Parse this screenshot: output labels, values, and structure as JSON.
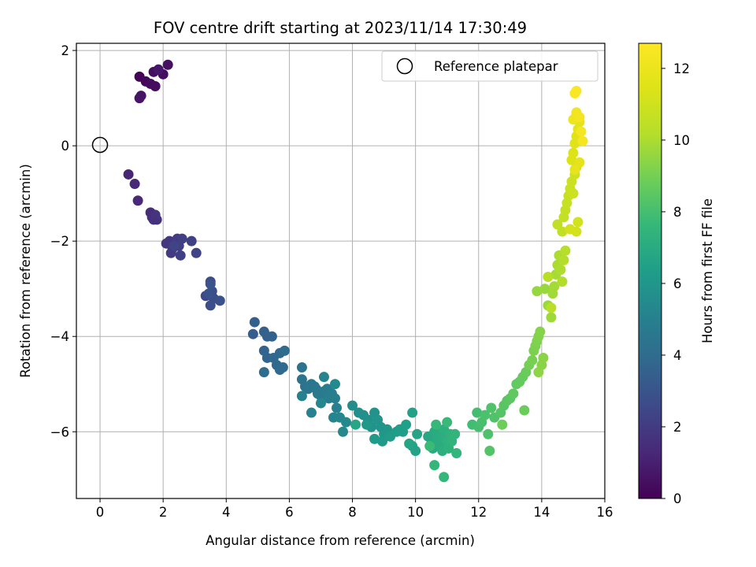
{
  "chart_data": {
    "type": "scatter",
    "title": "FOV centre drift starting at 2023/11/14 17:30:49",
    "xlabel": "Angular distance from reference (arcmin)",
    "ylabel": "Rotation from reference (arcmin)",
    "xlim": [
      -0.75,
      16.0
    ],
    "ylim": [
      -7.4,
      2.15
    ],
    "xticks": [
      0,
      2,
      4,
      6,
      8,
      10,
      12,
      14,
      16
    ],
    "yticks": [
      -6,
      -4,
      -2,
      0,
      2
    ],
    "grid": true,
    "colormap": "viridis",
    "colorbar": {
      "label": "Hours from first FF file",
      "range": [
        0,
        12.7
      ],
      "ticks": [
        0,
        2,
        4,
        6,
        8,
        10,
        12
      ]
    },
    "legend": {
      "position": "top-right",
      "entries": [
        "Reference platepar"
      ]
    },
    "reference_point": {
      "x": 0,
      "y": 0
    },
    "points": [
      [
        1.25,
        1.45,
        0.1
      ],
      [
        1.45,
        1.35,
        0.2
      ],
      [
        1.6,
        1.3,
        0.3
      ],
      [
        1.75,
        1.25,
        0.35
      ],
      [
        1.7,
        1.55,
        0.4
      ],
      [
        2.0,
        1.5,
        0.45
      ],
      [
        2.15,
        1.7,
        0.5
      ],
      [
        1.3,
        1.05,
        0.6
      ],
      [
        1.25,
        1.0,
        0.65
      ],
      [
        1.85,
        1.6,
        0.7
      ],
      [
        0.9,
        -0.6,
        1.2
      ],
      [
        1.1,
        -0.8,
        1.3
      ],
      [
        1.2,
        -1.15,
        1.4
      ],
      [
        1.6,
        -1.4,
        1.5
      ],
      [
        1.65,
        -1.5,
        1.55
      ],
      [
        1.7,
        -1.55,
        1.6
      ],
      [
        1.8,
        -1.55,
        1.65
      ],
      [
        1.75,
        -1.45,
        1.7
      ],
      [
        2.1,
        -2.05,
        1.8
      ],
      [
        2.2,
        -2.0,
        1.85
      ],
      [
        2.3,
        -2.15,
        1.9
      ],
      [
        2.25,
        -2.25,
        1.95
      ],
      [
        2.4,
        -2.0,
        2.0
      ],
      [
        2.45,
        -1.95,
        2.05
      ],
      [
        2.5,
        -2.1,
        2.1
      ],
      [
        2.55,
        -2.3,
        2.15
      ],
      [
        2.6,
        -1.95,
        2.2
      ],
      [
        2.9,
        -2.0,
        2.25
      ],
      [
        3.05,
        -2.25,
        2.3
      ],
      [
        2.35,
        -2.1,
        2.35
      ],
      [
        3.35,
        -3.15,
        2.6
      ],
      [
        3.5,
        -2.85,
        2.65
      ],
      [
        3.55,
        -3.05,
        2.7
      ],
      [
        3.6,
        -3.2,
        2.75
      ],
      [
        3.5,
        -3.35,
        2.8
      ],
      [
        3.8,
        -3.25,
        2.85
      ],
      [
        3.45,
        -3.1,
        2.9
      ],
      [
        3.5,
        -2.9,
        2.95
      ],
      [
        4.85,
        -3.95,
        3.4
      ],
      [
        4.9,
        -3.7,
        3.45
      ],
      [
        5.2,
        -3.9,
        3.5
      ],
      [
        5.3,
        -4.0,
        3.55
      ],
      [
        5.45,
        -4.0,
        3.6
      ],
      [
        5.2,
        -4.3,
        3.65
      ],
      [
        5.3,
        -4.45,
        3.7
      ],
      [
        5.5,
        -4.45,
        3.75
      ],
      [
        5.7,
        -4.35,
        3.8
      ],
      [
        5.6,
        -4.6,
        3.85
      ],
      [
        5.7,
        -4.7,
        3.9
      ],
      [
        5.8,
        -4.65,
        3.95
      ],
      [
        5.85,
        -4.3,
        4.0
      ],
      [
        5.2,
        -4.75,
        4.05
      ],
      [
        6.4,
        -4.65,
        4.3
      ],
      [
        6.4,
        -4.9,
        4.35
      ],
      [
        6.5,
        -5.05,
        4.4
      ],
      [
        6.6,
        -5.1,
        4.45
      ],
      [
        6.7,
        -5.0,
        4.5
      ],
      [
        6.8,
        -5.05,
        4.55
      ],
      [
        6.85,
        -5.1,
        4.6
      ],
      [
        6.9,
        -5.2,
        4.65
      ],
      [
        7.0,
        -5.25,
        4.7
      ],
      [
        7.1,
        -5.15,
        4.75
      ],
      [
        7.2,
        -5.1,
        4.8
      ],
      [
        7.25,
        -5.3,
        4.85
      ],
      [
        7.35,
        -5.2,
        4.9
      ],
      [
        7.45,
        -5.3,
        4.95
      ],
      [
        7.5,
        -5.5,
        5.0
      ],
      [
        6.4,
        -5.25,
        5.05
      ],
      [
        6.7,
        -5.6,
        5.1
      ],
      [
        7.1,
        -4.85,
        5.15
      ],
      [
        7.4,
        -5.7,
        5.2
      ],
      [
        7.6,
        -5.7,
        5.25
      ],
      [
        7.0,
        -5.4,
        5.3
      ],
      [
        7.7,
        -6.0,
        5.35
      ],
      [
        7.8,
        -5.8,
        5.4
      ],
      [
        7.45,
        -5.0,
        5.45
      ],
      [
        8.0,
        -5.45,
        5.6
      ],
      [
        8.2,
        -5.6,
        5.65
      ],
      [
        8.35,
        -5.65,
        5.7
      ],
      [
        8.5,
        -5.75,
        5.75
      ],
      [
        8.6,
        -5.9,
        5.8
      ],
      [
        8.7,
        -5.6,
        5.85
      ],
      [
        8.8,
        -5.75,
        5.9
      ],
      [
        8.9,
        -5.9,
        5.95
      ],
      [
        9.0,
        -6.05,
        6.0
      ],
      [
        9.1,
        -5.95,
        6.05
      ],
      [
        8.45,
        -5.85,
        6.1
      ],
      [
        8.7,
        -6.15,
        6.15
      ],
      [
        8.95,
        -6.2,
        6.2
      ],
      [
        9.2,
        -6.1,
        6.25
      ],
      [
        9.4,
        -6.0,
        6.3
      ],
      [
        9.5,
        -5.95,
        6.35
      ],
      [
        9.6,
        -6.0,
        6.4
      ],
      [
        9.7,
        -5.85,
        6.45
      ],
      [
        9.9,
        -5.6,
        6.5
      ],
      [
        9.9,
        -6.3,
        6.55
      ],
      [
        10.0,
        -6.4,
        6.6
      ],
      [
        10.05,
        -6.05,
        6.65
      ],
      [
        9.8,
        -6.25,
        6.7
      ],
      [
        8.1,
        -5.85,
        6.75
      ],
      [
        10.4,
        -6.1,
        6.8
      ],
      [
        10.5,
        -6.25,
        6.85
      ],
      [
        10.55,
        -6.35,
        6.9
      ],
      [
        10.6,
        -6.0,
        6.95
      ],
      [
        10.7,
        -6.15,
        7.0
      ],
      [
        10.75,
        -6.3,
        7.05
      ],
      [
        10.8,
        -6.1,
        7.1
      ],
      [
        10.85,
        -6.4,
        7.15
      ],
      [
        10.9,
        -5.95,
        7.2
      ],
      [
        11.0,
        -6.2,
        7.25
      ],
      [
        11.05,
        -6.35,
        7.3
      ],
      [
        11.1,
        -6.05,
        7.35
      ],
      [
        11.15,
        -6.2,
        7.4
      ],
      [
        11.25,
        -6.05,
        7.45
      ],
      [
        11.3,
        -6.45,
        7.5
      ],
      [
        10.6,
        -6.7,
        7.55
      ],
      [
        10.9,
        -6.95,
        7.6
      ],
      [
        10.65,
        -5.85,
        7.65
      ],
      [
        11.0,
        -5.8,
        7.7
      ],
      [
        10.45,
        -6.3,
        7.75
      ],
      [
        11.8,
        -5.85,
        7.9
      ],
      [
        11.95,
        -5.6,
        7.95
      ],
      [
        12.0,
        -5.9,
        8.0
      ],
      [
        12.1,
        -5.8,
        8.05
      ],
      [
        12.2,
        -5.65,
        8.1
      ],
      [
        12.3,
        -6.05,
        8.15
      ],
      [
        12.4,
        -5.5,
        8.2
      ],
      [
        12.5,
        -5.7,
        8.25
      ],
      [
        12.35,
        -6.4,
        8.3
      ],
      [
        12.7,
        -5.6,
        8.35
      ],
      [
        12.8,
        -5.45,
        8.4
      ],
      [
        12.9,
        -5.35,
        8.45
      ],
      [
        13.0,
        -5.3,
        8.5
      ],
      [
        13.1,
        -5.2,
        8.55
      ],
      [
        13.2,
        -5.0,
        8.6
      ],
      [
        13.3,
        -4.95,
        8.65
      ],
      [
        13.4,
        -4.85,
        8.7
      ],
      [
        13.5,
        -4.75,
        8.75
      ],
      [
        13.45,
        -5.55,
        8.8
      ],
      [
        12.75,
        -5.85,
        8.85
      ],
      [
        13.6,
        -4.6,
        9.0
      ],
      [
        13.7,
        -4.5,
        9.05
      ],
      [
        13.75,
        -4.3,
        9.1
      ],
      [
        13.8,
        -4.2,
        9.15
      ],
      [
        13.85,
        -4.1,
        9.2
      ],
      [
        13.9,
        -4.0,
        9.25
      ],
      [
        13.95,
        -3.9,
        9.3
      ],
      [
        14.0,
        -4.6,
        9.35
      ],
      [
        14.05,
        -4.45,
        9.4
      ],
      [
        13.9,
        -4.75,
        9.45
      ],
      [
        13.85,
        -3.05,
        9.6
      ],
      [
        14.1,
        -3.0,
        9.65
      ],
      [
        14.2,
        -3.35,
        9.7
      ],
      [
        14.3,
        -3.6,
        9.75
      ],
      [
        14.35,
        -3.1,
        9.8
      ],
      [
        14.4,
        -2.95,
        9.85
      ],
      [
        14.45,
        -2.7,
        9.9
      ],
      [
        14.5,
        -2.5,
        9.95
      ],
      [
        14.55,
        -2.3,
        10.0
      ],
      [
        14.6,
        -2.6,
        10.05
      ],
      [
        14.65,
        -2.85,
        10.1
      ],
      [
        14.7,
        -2.4,
        10.15
      ],
      [
        14.75,
        -2.2,
        10.2
      ],
      [
        14.2,
        -2.75,
        10.25
      ],
      [
        14.3,
        -3.4,
        10.3
      ],
      [
        14.5,
        -1.65,
        10.5
      ],
      [
        14.65,
        -1.8,
        10.55
      ],
      [
        14.7,
        -1.5,
        10.6
      ],
      [
        14.75,
        -1.35,
        10.65
      ],
      [
        14.8,
        -1.2,
        10.7
      ],
      [
        14.85,
        -1.05,
        10.75
      ],
      [
        14.9,
        -0.9,
        10.8
      ],
      [
        14.95,
        -0.75,
        10.85
      ],
      [
        15.0,
        -1.0,
        10.9
      ],
      [
        15.05,
        -0.6,
        10.95
      ],
      [
        15.1,
        -0.45,
        11.0
      ],
      [
        15.15,
        -1.6,
        11.05
      ],
      [
        15.1,
        -1.8,
        11.1
      ],
      [
        14.9,
        -1.75,
        11.15
      ],
      [
        14.95,
        -0.3,
        11.4
      ],
      [
        15.0,
        -0.15,
        11.45
      ],
      [
        15.05,
        0.05,
        11.5
      ],
      [
        15.1,
        0.2,
        11.55
      ],
      [
        15.15,
        0.35,
        11.6
      ],
      [
        15.2,
        0.5,
        11.65
      ],
      [
        15.1,
        0.65,
        11.7
      ],
      [
        15.2,
        -0.35,
        11.75
      ],
      [
        15.05,
        -0.5,
        11.8
      ],
      [
        15.0,
        0.55,
        12.1
      ],
      [
        15.1,
        0.7,
        12.2
      ],
      [
        15.2,
        0.6,
        12.3
      ],
      [
        15.25,
        0.3,
        12.35
      ],
      [
        15.3,
        0.1,
        12.4
      ],
      [
        15.05,
        1.1,
        12.55
      ],
      [
        15.1,
        1.15,
        12.6
      ]
    ]
  }
}
